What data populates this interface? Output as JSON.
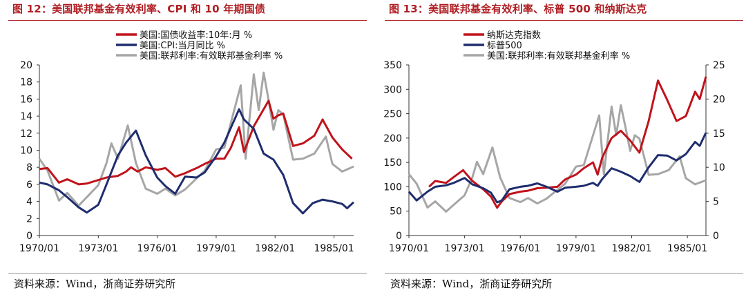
{
  "figures": [
    {
      "title": "图 12：美国联邦基金有效利率、CPI 和 10 年期国债",
      "source": "资料来源：Wind，浙商证券研究所"
    },
    {
      "title": "图 13：美国联邦基金有效利率、标普 500 和纳斯达克",
      "source": "资料来源：Wind，浙商证券研究所"
    }
  ],
  "chart_data": [
    {
      "type": "line",
      "x_ticks": [
        "1970/01",
        "1973/01",
        "1976/01",
        "1979/01",
        "1982/01",
        "1985/01"
      ],
      "x_range": [
        "1970/01",
        "1986/01"
      ],
      "ylim": [
        0,
        20
      ],
      "y_ticks": [
        0,
        2,
        4,
        6,
        8,
        10,
        12,
        14,
        16,
        18,
        20
      ],
      "legend_position": "top-center",
      "grid": false,
      "series": [
        {
          "name": "美国:国债收益率:10年:月 %",
          "color": "#c0131b",
          "points": [
            [
              "1970/01",
              7.8
            ],
            [
              "1970/06",
              7.9
            ],
            [
              "1971/01",
              6.2
            ],
            [
              "1971/06",
              6.6
            ],
            [
              "1972/01",
              6.0
            ],
            [
              "1972/06",
              6.1
            ],
            [
              "1973/01",
              6.5
            ],
            [
              "1973/06",
              6.8
            ],
            [
              "1974/01",
              7.0
            ],
            [
              "1974/06",
              7.5
            ],
            [
              "1974/09",
              8.0
            ],
            [
              "1975/01",
              7.5
            ],
            [
              "1975/06",
              8.0
            ],
            [
              "1976/01",
              7.7
            ],
            [
              "1976/06",
              7.9
            ],
            [
              "1976/12",
              6.9
            ],
            [
              "1977/06",
              7.3
            ],
            [
              "1978/01",
              7.9
            ],
            [
              "1978/06",
              8.4
            ],
            [
              "1979/01",
              9.0
            ],
            [
              "1979/06",
              9.0
            ],
            [
              "1979/10",
              10.3
            ],
            [
              "1980/03",
              12.7
            ],
            [
              "1980/06",
              9.8
            ],
            [
              "1980/12",
              12.8
            ],
            [
              "1981/09",
              15.8
            ],
            [
              "1981/12",
              13.7
            ],
            [
              "1982/03",
              14.1
            ],
            [
              "1982/06",
              14.3
            ],
            [
              "1982/12",
              10.5
            ],
            [
              "1983/06",
              10.8
            ],
            [
              "1984/01",
              11.7
            ],
            [
              "1984/06",
              13.6
            ],
            [
              "1984/12",
              11.5
            ],
            [
              "1985/06",
              10.1
            ],
            [
              "1985/12",
              9.0
            ]
          ]
        },
        {
          "name": "美国:CPI:当月同比 %",
          "color": "#1f2d6e",
          "points": [
            [
              "1970/01",
              6.2
            ],
            [
              "1970/06",
              6.0
            ],
            [
              "1971/01",
              5.3
            ],
            [
              "1971/06",
              4.5
            ],
            [
              "1972/01",
              3.3
            ],
            [
              "1972/06",
              2.7
            ],
            [
              "1973/01",
              3.6
            ],
            [
              "1973/06",
              6.0
            ],
            [
              "1974/01",
              9.4
            ],
            [
              "1974/06",
              10.9
            ],
            [
              "1974/12",
              12.3
            ],
            [
              "1975/06",
              9.4
            ],
            [
              "1976/01",
              6.8
            ],
            [
              "1976/06",
              5.8
            ],
            [
              "1976/12",
              4.9
            ],
            [
              "1977/06",
              6.9
            ],
            [
              "1978/01",
              6.8
            ],
            [
              "1978/06",
              7.4
            ],
            [
              "1979/01",
              9.3
            ],
            [
              "1979/06",
              10.9
            ],
            [
              "1980/03",
              14.8
            ],
            [
              "1980/06",
              13.6
            ],
            [
              "1980/12",
              12.5
            ],
            [
              "1981/06",
              9.6
            ],
            [
              "1981/12",
              8.9
            ],
            [
              "1982/06",
              7.1
            ],
            [
              "1982/12",
              3.8
            ],
            [
              "1983/06",
              2.6
            ],
            [
              "1983/12",
              3.8
            ],
            [
              "1984/06",
              4.2
            ],
            [
              "1984/12",
              4.0
            ],
            [
              "1985/06",
              3.7
            ],
            [
              "1985/09",
              3.2
            ],
            [
              "1986/01",
              3.9
            ]
          ]
        },
        {
          "name": "美国:联邦利率:有效联邦基金利率 %",
          "color": "#a6a6a6",
          "points": [
            [
              "1970/01",
              9.0
            ],
            [
              "1970/06",
              7.6
            ],
            [
              "1971/01",
              4.1
            ],
            [
              "1971/06",
              5.0
            ],
            [
              "1972/01",
              3.5
            ],
            [
              "1972/06",
              4.5
            ],
            [
              "1973/01",
              5.9
            ],
            [
              "1973/06",
              8.5
            ],
            [
              "1973/09",
              10.8
            ],
            [
              "1974/01",
              9.0
            ],
            [
              "1974/07",
              12.9
            ],
            [
              "1974/12",
              8.5
            ],
            [
              "1975/06",
              5.5
            ],
            [
              "1976/01",
              4.9
            ],
            [
              "1976/06",
              5.5
            ],
            [
              "1976/12",
              4.7
            ],
            [
              "1977/06",
              5.4
            ],
            [
              "1978/01",
              6.7
            ],
            [
              "1978/06",
              7.6
            ],
            [
              "1979/01",
              10.1
            ],
            [
              "1979/06",
              10.3
            ],
            [
              "1980/04",
              17.6
            ],
            [
              "1980/07",
              9.0
            ],
            [
              "1980/12",
              18.9
            ],
            [
              "1981/03",
              14.7
            ],
            [
              "1981/06",
              19.1
            ],
            [
              "1981/09",
              15.9
            ],
            [
              "1981/12",
              12.4
            ],
            [
              "1982/03",
              14.7
            ],
            [
              "1982/06",
              14.2
            ],
            [
              "1982/12",
              8.9
            ],
            [
              "1983/06",
              9.0
            ],
            [
              "1984/01",
              9.6
            ],
            [
              "1984/08",
              11.6
            ],
            [
              "1984/12",
              8.4
            ],
            [
              "1985/06",
              7.5
            ],
            [
              "1986/01",
              8.1
            ]
          ]
        }
      ]
    },
    {
      "type": "line",
      "x_ticks": [
        "1970/01",
        "1973/01",
        "1976/01",
        "1979/01",
        "1982/01",
        "1985/01"
      ],
      "x_range": [
        "1970/01",
        "1986/01"
      ],
      "ylim": [
        0,
        350
      ],
      "y_ticks": [
        0,
        50,
        100,
        150,
        200,
        250,
        300,
        350
      ],
      "y2lim": [
        0,
        25
      ],
      "y2_ticks": [
        0,
        5,
        10,
        15,
        20,
        25
      ],
      "legend_position": "top-center",
      "grid": false,
      "series": [
        {
          "name": "纳斯达克指数",
          "color": "#c0131b",
          "axis": "left",
          "points": [
            [
              "1971/02",
              100
            ],
            [
              "1971/06",
              112
            ],
            [
              "1972/01",
              108
            ],
            [
              "1972/06",
              120
            ],
            [
              "1972/12",
              134
            ],
            [
              "1973/06",
              112
            ],
            [
              "1974/01",
              95
            ],
            [
              "1974/06",
              80
            ],
            [
              "1974/10",
              57
            ],
            [
              "1975/01",
              70
            ],
            [
              "1975/06",
              85
            ],
            [
              "1976/01",
              90
            ],
            [
              "1976/06",
              92
            ],
            [
              "1976/12",
              97
            ],
            [
              "1977/06",
              98
            ],
            [
              "1978/01",
              100
            ],
            [
              "1978/06",
              115
            ],
            [
              "1979/01",
              125
            ],
            [
              "1979/06",
              138
            ],
            [
              "1979/12",
              150
            ],
            [
              "1980/03",
              125
            ],
            [
              "1980/06",
              160
            ],
            [
              "1980/12",
              200
            ],
            [
              "1981/06",
              215
            ],
            [
              "1981/12",
              195
            ],
            [
              "1982/06",
              170
            ],
            [
              "1982/12",
              235
            ],
            [
              "1983/06",
              318
            ],
            [
              "1983/12",
              278
            ],
            [
              "1984/06",
              235
            ],
            [
              "1984/12",
              245
            ],
            [
              "1985/06",
              295
            ],
            [
              "1985/09",
              280
            ],
            [
              "1986/01",
              326
            ]
          ]
        },
        {
          "name": "标普500",
          "color": "#1f2d6e",
          "axis": "left",
          "points": [
            [
              "1970/01",
              90
            ],
            [
              "1970/06",
              72
            ],
            [
              "1971/01",
              90
            ],
            [
              "1971/06",
              100
            ],
            [
              "1972/01",
              103
            ],
            [
              "1972/06",
              108
            ],
            [
              "1973/01",
              118
            ],
            [
              "1973/06",
              105
            ],
            [
              "1974/01",
              97
            ],
            [
              "1974/06",
              88
            ],
            [
              "1974/10",
              68
            ],
            [
              "1975/01",
              72
            ],
            [
              "1975/06",
              95
            ],
            [
              "1976/01",
              100
            ],
            [
              "1976/06",
              102
            ],
            [
              "1976/12",
              107
            ],
            [
              "1977/06",
              100
            ],
            [
              "1978/01",
              90
            ],
            [
              "1978/06",
              98
            ],
            [
              "1979/01",
              100
            ],
            [
              "1979/06",
              102
            ],
            [
              "1979/12",
              108
            ],
            [
              "1980/03",
              102
            ],
            [
              "1980/06",
              116
            ],
            [
              "1980/12",
              138
            ],
            [
              "1981/06",
              131
            ],
            [
              "1981/12",
              122
            ],
            [
              "1982/06",
              110
            ],
            [
              "1982/12",
              140
            ],
            [
              "1983/06",
              165
            ],
            [
              "1983/12",
              164
            ],
            [
              "1984/06",
              154
            ],
            [
              "1984/12",
              167
            ],
            [
              "1985/06",
              192
            ],
            [
              "1985/09",
              184
            ],
            [
              "1986/01",
              211
            ]
          ]
        },
        {
          "name": "美国:联邦利率:有效联邦基金利率 %",
          "color": "#a6a6a6",
          "axis": "right",
          "points": [
            [
              "1970/01",
              9.0
            ],
            [
              "1970/06",
              7.6
            ],
            [
              "1971/01",
              4.1
            ],
            [
              "1971/06",
              5.0
            ],
            [
              "1972/01",
              3.5
            ],
            [
              "1972/06",
              4.5
            ],
            [
              "1973/01",
              5.9
            ],
            [
              "1973/06",
              8.5
            ],
            [
              "1973/09",
              10.8
            ],
            [
              "1974/01",
              9.0
            ],
            [
              "1974/07",
              12.9
            ],
            [
              "1974/12",
              8.5
            ],
            [
              "1975/06",
              5.5
            ],
            [
              "1976/01",
              4.9
            ],
            [
              "1976/06",
              5.5
            ],
            [
              "1976/12",
              4.7
            ],
            [
              "1977/06",
              5.4
            ],
            [
              "1978/01",
              6.7
            ],
            [
              "1978/06",
              7.6
            ],
            [
              "1979/01",
              10.1
            ],
            [
              "1979/06",
              10.3
            ],
            [
              "1980/04",
              17.6
            ],
            [
              "1980/07",
              9.0
            ],
            [
              "1980/12",
              18.9
            ],
            [
              "1981/03",
              14.7
            ],
            [
              "1981/06",
              19.1
            ],
            [
              "1981/09",
              15.9
            ],
            [
              "1981/12",
              12.4
            ],
            [
              "1982/03",
              14.7
            ],
            [
              "1982/06",
              14.2
            ],
            [
              "1982/12",
              8.9
            ],
            [
              "1983/06",
              9.0
            ],
            [
              "1984/01",
              9.6
            ],
            [
              "1984/08",
              11.6
            ],
            [
              "1984/12",
              8.4
            ],
            [
              "1985/06",
              7.5
            ],
            [
              "1986/01",
              8.1
            ]
          ]
        }
      ]
    }
  ]
}
